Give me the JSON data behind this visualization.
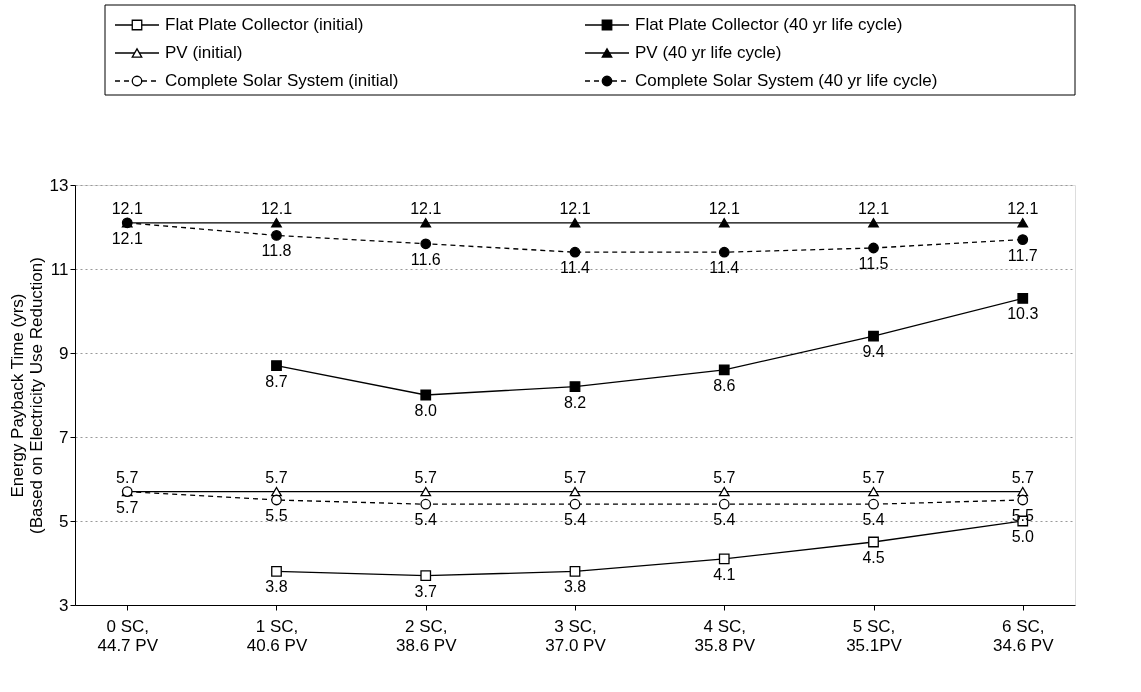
{
  "chart_data": {
    "type": "line",
    "ylabel": "Energy Payback Time (yrs)\n(Based on Electricity Use Reduction)",
    "categories": [
      "0 SC,\n44.7 PV",
      "1 SC,\n40.6 PV",
      "2 SC,\n38.6 PV",
      "3 SC,\n37.0 PV",
      "4 SC,\n35.8 PV",
      "5 SC,\n35.1PV",
      "6 SC,\n34.6 PV"
    ],
    "series": [
      {
        "name": "Flat Plate Collector (initial)",
        "color": "#000000",
        "marker": "square",
        "line_style": "solid",
        "values": [
          null,
          3.8,
          3.7,
          3.8,
          4.1,
          4.5,
          5.0
        ],
        "value_labels": [
          null,
          "3.8",
          "3.7",
          "3.8",
          "4.1",
          "4.5",
          "5.0"
        ]
      },
      {
        "name": "Flat Plate Collector (40 yr life cycle)",
        "color": "#000000",
        "marker": "square",
        "line_style": "solid",
        "values": [
          null,
          8.7,
          8.0,
          8.2,
          8.6,
          9.4,
          10.3
        ],
        "value_labels": [
          null,
          "8.7",
          "8.0",
          "8.2",
          "8.6",
          "9.4",
          "10.3"
        ]
      },
      {
        "name": "PV (initial)",
        "color": "#000000",
        "marker": "triangle",
        "line_style": "solid",
        "values": [
          5.7,
          5.7,
          5.7,
          5.7,
          5.7,
          5.7,
          5.7
        ],
        "value_labels": [
          "5.7",
          "5.7",
          "5.7",
          "5.7",
          "5.7",
          "5.7",
          "5.7"
        ]
      },
      {
        "name": "PV (40 yr life cycle)",
        "color": "#000000",
        "marker": "triangle",
        "line_style": "solid",
        "values": [
          12.1,
          12.1,
          12.1,
          12.1,
          12.1,
          12.1,
          12.1
        ],
        "value_labels": [
          "12.1",
          "12.1",
          "12.1",
          "12.1",
          "12.1",
          "12.1",
          "12.1"
        ]
      },
      {
        "name": "Complete Solar System (initial)",
        "color": "#000000",
        "marker": "circle",
        "line_style": "dashed",
        "values": [
          5.7,
          5.5,
          5.4,
          5.4,
          5.4,
          5.4,
          5.5
        ],
        "value_labels": [
          "5.7",
          "5.5",
          "5.4",
          "5.4",
          "5.4",
          "5.4",
          "5.5"
        ]
      },
      {
        "name": "Complete Solar System (40 yr life cycle)",
        "color": "#000000",
        "marker": "circle",
        "line_style": "dashed",
        "values": [
          12.1,
          11.8,
          11.6,
          11.4,
          11.4,
          11.5,
          11.7
        ],
        "value_labels": [
          "12.1",
          "11.8",
          "11.6",
          "11.4",
          "11.4",
          "11.5",
          "11.7"
        ]
      }
    ],
    "ylim": [
      3,
      13
    ],
    "yticks": [
      3,
      5,
      7,
      9,
      11,
      13
    ],
    "grid": "y",
    "legend": "top"
  }
}
